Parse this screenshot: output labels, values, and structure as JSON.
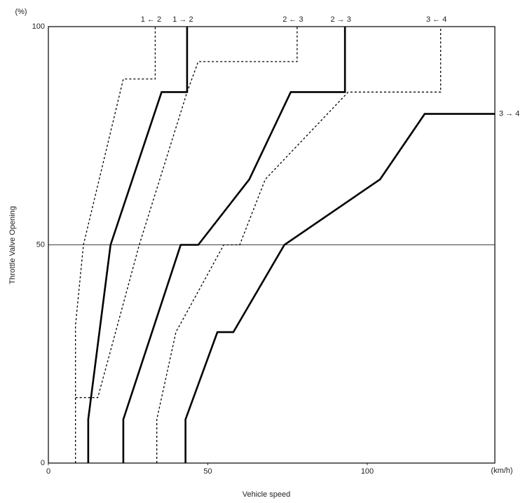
{
  "chart_data": {
    "type": "line",
    "y_label": "Throttle Valve Opening",
    "x_label": "Vehicle speed",
    "y_unit": "(%)",
    "x_unit": "(km/h)",
    "xlim": [
      0,
      140
    ],
    "ylim": [
      0,
      100
    ],
    "xticks": [
      0,
      50,
      100
    ],
    "yticks": [
      0,
      50,
      100
    ],
    "grid": true,
    "series": [
      {
        "name": "1 ← 2",
        "color": "#000000",
        "dashed": true,
        "x": [
          8.5,
          8.5,
          11,
          23.5,
          33.5,
          33.5
        ],
        "values": [
          0,
          31.5,
          50,
          88,
          88,
          100
        ]
      },
      {
        "name": "1 → 2",
        "color": "#000000",
        "dashed": false,
        "x": [
          12.5,
          12.5,
          19.5,
          35.5,
          43.5,
          43.5
        ],
        "values": [
          0,
          10,
          50,
          85,
          85,
          100
        ]
      },
      {
        "name": "2 ← 3",
        "color": "#000000",
        "dashed": true,
        "x": [
          8.5,
          15.5,
          28.5,
          43.5,
          47,
          78,
          78
        ],
        "values": [
          15,
          15,
          50,
          85,
          92,
          92,
          100
        ]
      },
      {
        "name": "2 → 3",
        "color": "#000000",
        "dashed": false,
        "x": [
          23.5,
          23.5,
          41.5,
          47,
          63,
          76,
          93,
          93
        ],
        "values": [
          0,
          10,
          50,
          50,
          65,
          85,
          85,
          100
        ]
      },
      {
        "name": "3 ← 4",
        "color": "#000000",
        "dashed": true,
        "x": [
          34,
          34,
          40,
          55,
          60,
          68,
          94,
          123,
          123
        ],
        "values": [
          0,
          10,
          30,
          50,
          50,
          65,
          85,
          85,
          100
        ]
      },
      {
        "name": "3 → 4",
        "color": "#000000",
        "dashed": false,
        "x": [
          43,
          43,
          53,
          58,
          74,
          104,
          118,
          140
        ],
        "values": [
          0,
          10,
          30,
          30,
          50,
          65,
          80,
          80
        ]
      }
    ]
  }
}
